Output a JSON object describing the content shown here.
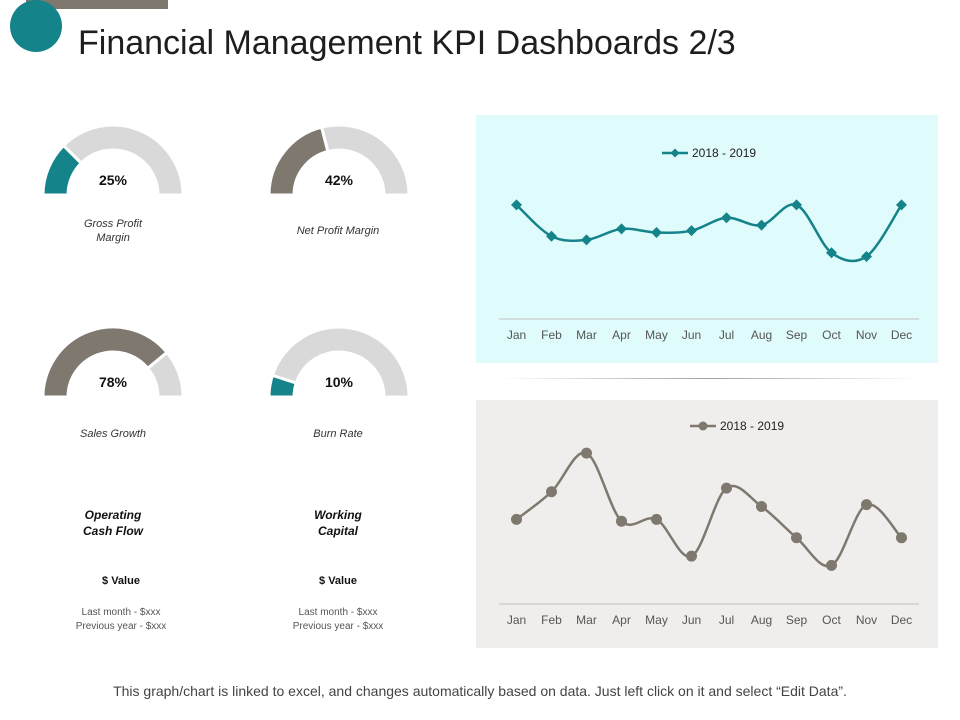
{
  "title": "Financial Management KPI Dashboards 2/3",
  "colors": {
    "teal": "#14838a",
    "taupe": "#7f786f",
    "gauge_bg": "#d9d9d9",
    "panel1_bg": "#dffbfb",
    "panel2_bg": "#f0eeec"
  },
  "gauges": [
    {
      "label": "Gross Profit Margin",
      "value_text": "25%",
      "value": 25,
      "color": "#14838a"
    },
    {
      "label": "Net Profit Margin",
      "value_text": "42%",
      "value": 42,
      "color": "#7f786f"
    },
    {
      "label": "Sales Growth",
      "value_text": "78%",
      "value": 78,
      "color": "#7f786f"
    },
    {
      "label": "Burn Rate",
      "value_text": "10%",
      "value": 10,
      "color": "#14838a"
    }
  ],
  "kpis": [
    {
      "title": "Operating Cash Flow",
      "value": "$ Value",
      "last_month": "Last month - $xxx",
      "previous_year": "Previous year - $xxx"
    },
    {
      "title": "Working Capital",
      "value": "$ Value",
      "last_month": "Last month - $xxx",
      "previous_year": "Previous year - $xxx"
    }
  ],
  "chart_data": [
    {
      "type": "line",
      "categories": [
        "Jan",
        "Feb",
        "Mar",
        "Apr",
        "May",
        "Jun",
        "Jul",
        "Aug",
        "Sep",
        "Oct",
        "Nov",
        "Dec"
      ],
      "series": [
        {
          "name": "2018 - 2019",
          "values": [
            62,
            45,
            43,
            49,
            47,
            48,
            55,
            51,
            62,
            36,
            34,
            62
          ],
          "color": "#14838a",
          "marker": "diamond"
        }
      ],
      "ylim": [
        0,
        100
      ],
      "legend": "top-center"
    },
    {
      "type": "line",
      "categories": [
        "Jan",
        "Feb",
        "Mar",
        "Apr",
        "May",
        "Jun",
        "Jul",
        "Aug",
        "Sep",
        "Oct",
        "Nov",
        "Dec"
      ],
      "series": [
        {
          "name": "2018 - 2019",
          "values": [
            46,
            61,
            82,
            45,
            46,
            26,
            63,
            53,
            36,
            21,
            54,
            36
          ],
          "color": "#7f786f",
          "marker": "circle"
        }
      ],
      "ylim": [
        0,
        100
      ],
      "legend": "top-center"
    }
  ],
  "footer": "This graph/chart is linked to excel, and changes automatically based on data. Just left click on it and select “Edit Data”."
}
